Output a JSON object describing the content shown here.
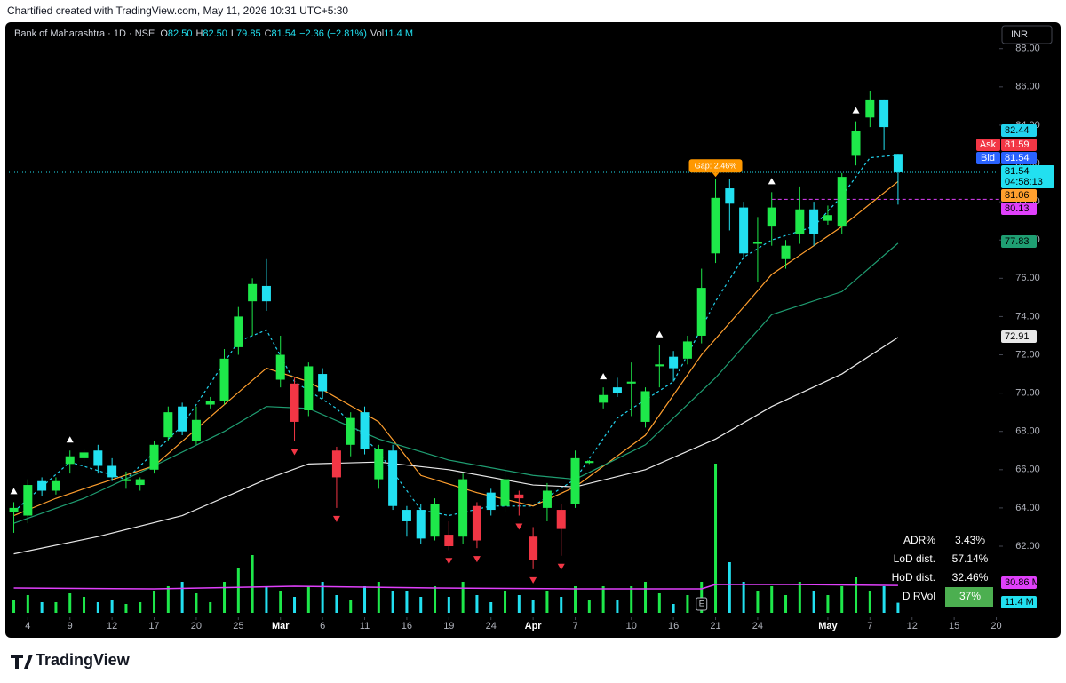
{
  "chart_data": {
    "type": "candlestick",
    "title": "Chartified created with TradingView.com, May 11, 2026 10:31 UTC+5:30",
    "symbol": "Bank of Maharashtra · 1D · NSE",
    "ohlc_legend": [
      {
        "key": "O",
        "value": "82.50"
      },
      {
        "key": "H",
        "value": "82.50"
      },
      {
        "key": "L",
        "value": "79.85"
      },
      {
        "key": "C",
        "value": "81.54"
      }
    ],
    "change": "−2.36 (−2.81%)",
    "volume_legend": {
      "key": "Vol",
      "value": "11.4 M"
    },
    "currency": "INR",
    "brand": "TradingView",
    "xlim": [
      -0.35,
      70.22
    ],
    "ylim": [
      57.22,
      89.38
    ],
    "volume_lim": [
      0,
      200
    ],
    "yticks": [
      {
        "value": 88,
        "label": "88.00"
      },
      {
        "value": 86,
        "label": "86.00"
      },
      {
        "value": 84,
        "label": "84.00"
      },
      {
        "value": 82,
        "label": "82.00"
      },
      {
        "value": 80,
        "label": "80.00"
      },
      {
        "value": 78,
        "label": "78.00"
      },
      {
        "value": 76,
        "label": "76.00"
      },
      {
        "value": 74,
        "label": "74.00"
      },
      {
        "value": 72,
        "label": "72.00"
      },
      {
        "value": 70,
        "label": "70.00"
      },
      {
        "value": 68,
        "label": "68.00"
      },
      {
        "value": 66,
        "label": "66.00"
      },
      {
        "value": 64,
        "label": "64.00"
      },
      {
        "value": 62,
        "label": "62.00"
      }
    ],
    "xticks": [
      {
        "value": 1,
        "label": "4"
      },
      {
        "value": 4,
        "label": "9"
      },
      {
        "value": 7,
        "label": "12"
      },
      {
        "value": 10,
        "label": "17"
      },
      {
        "value": 13,
        "label": "20"
      },
      {
        "value": 16,
        "label": "25"
      },
      {
        "value": 19,
        "label": "Mar"
      },
      {
        "value": 22,
        "label": "6"
      },
      {
        "value": 25,
        "label": "11"
      },
      {
        "value": 28,
        "label": "16"
      },
      {
        "value": 31,
        "label": "19"
      },
      {
        "value": 34,
        "label": "24"
      },
      {
        "value": 37,
        "label": "Apr"
      },
      {
        "value": 40,
        "label": "7"
      },
      {
        "value": 44,
        "label": "10"
      },
      {
        "value": 47,
        "label": "16"
      },
      {
        "value": 50,
        "label": "21"
      },
      {
        "value": 53,
        "label": "24"
      },
      {
        "value": 58,
        "label": "May"
      },
      {
        "value": 61,
        "label": "7"
      },
      {
        "value": 64,
        "label": "12"
      },
      {
        "value": 67,
        "label": "15"
      },
      {
        "value": 70,
        "label": "20"
      }
    ],
    "colors": {
      "up": "#1ee84a",
      "down": "#22e0f0",
      "flag": "#f23645"
    },
    "flagged": [
      20,
      23,
      31,
      33,
      36,
      37,
      39
    ],
    "open": [
      63.8,
      63.6,
      65.4,
      64.9,
      66.3,
      66.6,
      67.0,
      66.2,
      65.4,
      65.2,
      66.0,
      67.7,
      69.3,
      67.5,
      69.4,
      69.6,
      72.4,
      74.8,
      75.6,
      70.7,
      70.5,
      69.1,
      71.0,
      67.0,
      67.3,
      69.0,
      65.5,
      67.0,
      63.9,
      63.9,
      62.5,
      62.6,
      62.5,
      64.1,
      64.8,
      64.1,
      64.7,
      62.5,
      64.0,
      63.9,
      64.2,
      66.35,
      69.5,
      70.3,
      70.5,
      68.5,
      71.4,
      71.9,
      71.8,
      73.0,
      77.3,
      80.7,
      79.7,
      77.8,
      78.7,
      77.0,
      78.3,
      79.6,
      79.0,
      78.7,
      82.4,
      84.4,
      85.3,
      82.5
    ],
    "high": [
      64.3,
      65.5,
      65.6,
      65.6,
      67.0,
      67.1,
      67.3,
      66.6,
      65.9,
      65.6,
      67.5,
      69.3,
      69.5,
      69.3,
      69.8,
      72.3,
      74.5,
      76.0,
      77.0,
      73.0,
      70.8,
      71.6,
      71.3,
      67.2,
      69.0,
      69.3,
      67.3,
      67.3,
      64.1,
      64.2,
      64.5,
      63.3,
      65.8,
      64.3,
      65.0,
      66.2,
      64.9,
      63.0,
      65.3,
      64.2,
      67.0,
      66.5,
      70.3,
      70.8,
      71.6,
      70.3,
      72.5,
      72.2,
      73.0,
      76.5,
      81.2,
      81.2,
      80.0,
      79.2,
      80.5,
      78.0,
      80.8,
      80.0,
      79.8,
      81.5,
      84.2,
      85.8,
      85.3,
      82.5
    ],
    "low": [
      62.7,
      63.2,
      64.6,
      64.7,
      65.8,
      66.4,
      65.8,
      65.4,
      65.0,
      64.9,
      65.8,
      67.5,
      67.8,
      67.3,
      69.2,
      69.4,
      72.0,
      73.0,
      74.3,
      70.3,
      67.5,
      68.8,
      69.7,
      64.0,
      66.7,
      66.8,
      65.0,
      63.9,
      62.5,
      62.1,
      62.3,
      61.8,
      62.1,
      61.9,
      63.6,
      63.8,
      63.6,
      60.8,
      63.3,
      61.5,
      64.0,
      66.3,
      69.2,
      69.8,
      68.8,
      68.2,
      70.3,
      70.6,
      71.5,
      72.6,
      76.8,
      78.5,
      77.0,
      75.8,
      77.7,
      76.5,
      77.8,
      77.7,
      78.8,
      78.3,
      81.9,
      83.9,
      82.7,
      79.85
    ],
    "close": [
      64.0,
      65.2,
      64.9,
      65.4,
      66.7,
      66.9,
      66.2,
      65.6,
      65.5,
      65.5,
      67.3,
      69.0,
      68.0,
      68.6,
      69.6,
      71.8,
      74.0,
      75.7,
      74.8,
      72.0,
      68.5,
      71.4,
      70.1,
      65.6,
      68.7,
      67.1,
      67.1,
      64.1,
      63.3,
      62.4,
      64.2,
      62.0,
      65.5,
      62.3,
      63.9,
      65.5,
      64.5,
      61.3,
      64.9,
      62.9,
      66.6,
      66.45,
      69.9,
      70.0,
      70.6,
      70.1,
      71.5,
      71.3,
      72.7,
      75.5,
      80.2,
      79.9,
      77.3,
      77.9,
      79.7,
      77.7,
      79.6,
      78.3,
      79.3,
      81.3,
      83.7,
      85.3,
      83.9,
      81.54
    ],
    "volume": [
      15,
      20,
      12,
      12,
      22,
      18,
      12,
      15,
      10,
      12,
      25,
      30,
      35,
      22,
      12,
      35,
      50,
      65,
      30,
      25,
      18,
      30,
      35,
      20,
      15,
      30,
      35,
      25,
      25,
      18,
      30,
      18,
      35,
      20,
      12,
      25,
      20,
      15,
      25,
      18,
      30,
      15,
      30,
      15,
      30,
      35,
      22,
      10,
      20,
      35,
      168,
      57,
      35,
      25,
      30,
      20,
      35,
      25,
      20,
      30,
      40,
      25,
      30,
      11.4
    ],
    "series": [
      {
        "color": "#22d3ee",
        "dash": true,
        "x": [
          0,
          4,
          8,
          12,
          16,
          18,
          20,
          23,
          26,
          29,
          31,
          34,
          37,
          40,
          43,
          47,
          50,
          52,
          54,
          57,
          59,
          61,
          63
        ],
        "values": [
          63.8,
          66.4,
          65.5,
          68.3,
          72.7,
          73.3,
          70.6,
          69.2,
          66.9,
          63.9,
          63.6,
          64.1,
          64.1,
          65.5,
          68.7,
          70.6,
          74.8,
          77.1,
          78.0,
          78.7,
          80.3,
          82.3,
          82.44
        ]
      },
      {
        "color": "#ff9f2e",
        "x": [
          0,
          3,
          5,
          10,
          15,
          18,
          21,
          26,
          29,
          33,
          37,
          40,
          45,
          49,
          52,
          54,
          59,
          63
        ],
        "values": [
          63.6,
          64.5,
          65.0,
          66.2,
          69.4,
          71.3,
          70.6,
          68.5,
          65.7,
          64.8,
          64.1,
          65.1,
          67.8,
          72.0,
          74.5,
          76.2,
          78.7,
          81.06
        ]
      },
      {
        "color": "#1f9e72",
        "x": [
          0,
          5,
          10,
          15,
          18,
          21,
          26,
          31,
          37,
          40,
          45,
          50,
          54,
          59,
          63
        ],
        "values": [
          63.2,
          64.5,
          66.2,
          68.0,
          69.3,
          69.2,
          67.6,
          66.5,
          65.7,
          65.5,
          67.3,
          70.8,
          74.1,
          75.3,
          77.83
        ]
      },
      {
        "color": "#e8e8e8",
        "x": [
          0,
          6,
          12,
          18,
          21,
          26,
          31,
          37,
          40,
          45,
          50,
          54,
          59,
          63
        ],
        "values": [
          61.6,
          62.5,
          63.6,
          65.5,
          66.3,
          66.4,
          66.0,
          65.2,
          65.1,
          66.0,
          67.6,
          69.3,
          71.0,
          72.91
        ]
      }
    ],
    "volume_ma": {
      "color": "#e040fb",
      "x": [
        0,
        10,
        20,
        30,
        40,
        49,
        50,
        55,
        63
      ],
      "values": [
        28,
        27,
        30,
        28,
        27,
        27,
        32,
        32,
        30.86
      ]
    },
    "up_markers": [
      0,
      4,
      42,
      46,
      54,
      60
    ],
    "down_markers": [
      20,
      23,
      31,
      33,
      36,
      37,
      39
    ],
    "gap": {
      "text": "Gap: 2.46%",
      "at": 50
    },
    "earnings": {
      "text": "E",
      "at": 49
    },
    "levels": [
      {
        "value": 80.13,
        "color": "#e040fb",
        "from": 54
      }
    ],
    "price_tags": [
      {
        "text": "82.44",
        "color": "#22d3ee",
        "text_color": "#000000"
      },
      {
        "prefix": "Ask",
        "text": "81.59",
        "color": "#f23645",
        "text_color": "#ffffff"
      },
      {
        "prefix": "Bid",
        "text": "81.54",
        "color": "#2962ff",
        "text_color": "#ffffff"
      },
      {
        "text": "81.54",
        "sub": "04:58:13",
        "color": "#22e0f0",
        "text_color": "#000000"
      },
      {
        "text": "81.06",
        "color": "#ff9f2e",
        "text_color": "#000000"
      },
      {
        "text": "80.13",
        "color": "#e040fb",
        "text_color": "#000000"
      },
      {
        "text": "77.83",
        "color": "#1f9e72",
        "text_color": "#000000"
      },
      {
        "text": "72.91",
        "color": "#e8e8e8",
        "text_color": "#000000"
      },
      {
        "text": "30.86 M",
        "color": "#e040fb",
        "text_color": "#000000"
      },
      {
        "text": "11.4 M",
        "color": "#22e0f0",
        "text_color": "#000000"
      }
    ],
    "stats": [
      {
        "label": "ADR%",
        "value": "3.43%"
      },
      {
        "label": "LoD dist.",
        "value": "57.14%"
      },
      {
        "label": "HoD dist.",
        "value": "32.46%"
      },
      {
        "label": "D RVol",
        "value": "37%",
        "highlight": "#4caf50"
      }
    ]
  }
}
